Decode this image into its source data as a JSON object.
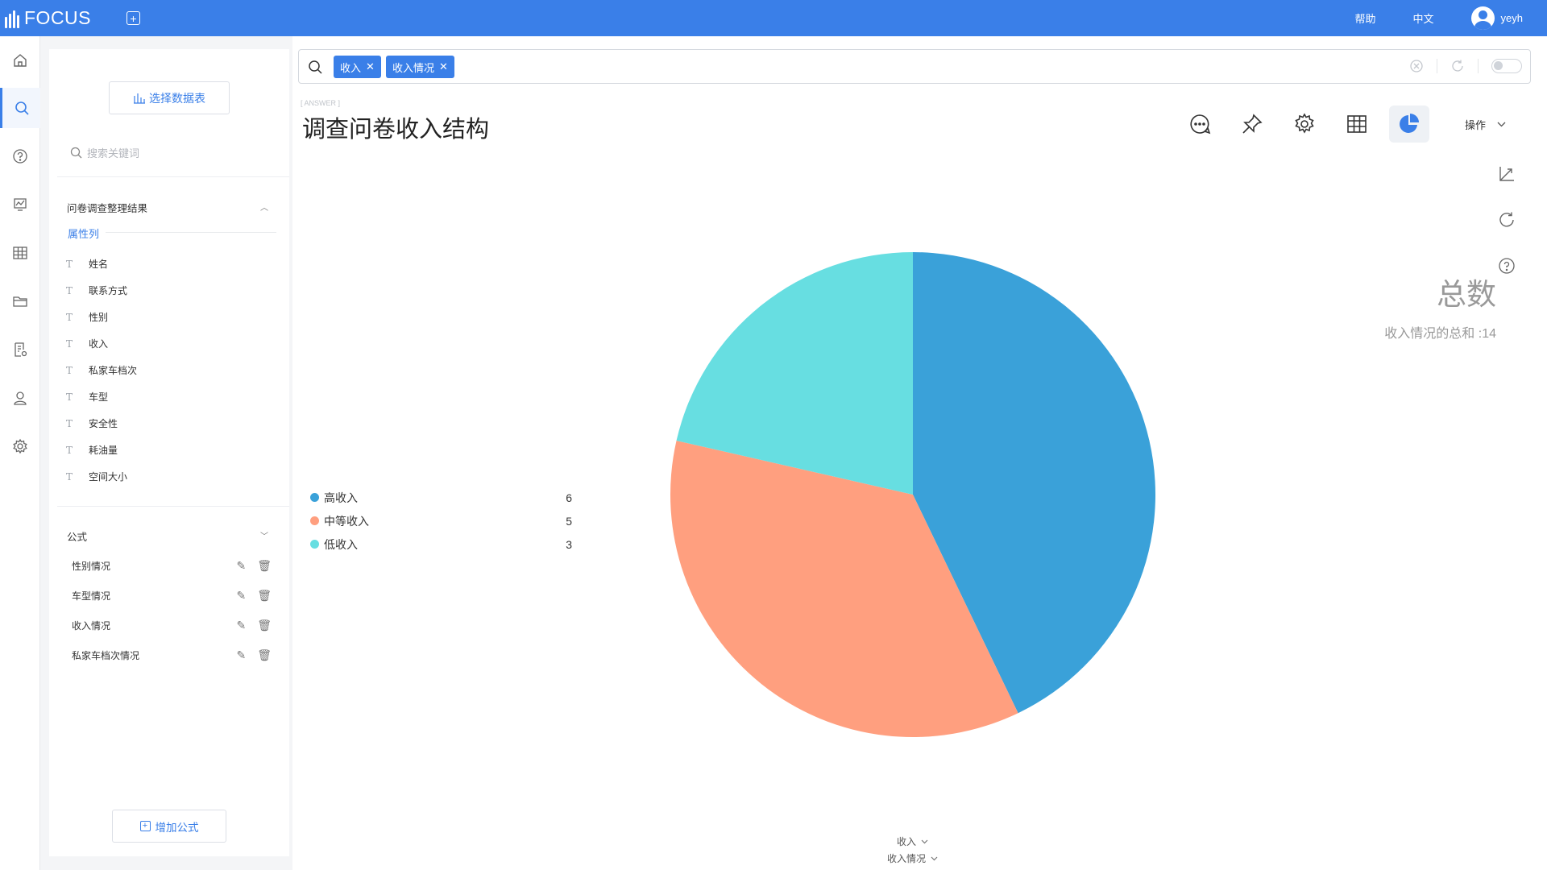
{
  "app": {
    "logo_text": "FOCUS",
    "help": "帮助",
    "lang": "中文",
    "user": "yeyh"
  },
  "sidebar": {
    "select_table": "选择数据表",
    "search_placeholder": "搜索关键词",
    "section_title": "问卷调查整理结果",
    "attr_label": "属性列",
    "fields": [
      "姓名",
      "联系方式",
      "性别",
      "收入",
      "私家车档次",
      "车型",
      "安全性",
      "耗油量",
      "空间大小"
    ],
    "formula_title": "公式",
    "formulas": [
      "性别情况",
      "车型情况",
      "收入情况",
      "私家车档次情况"
    ],
    "add_formula": "增加公式"
  },
  "search": {
    "tags": [
      "收入",
      "收入情况"
    ]
  },
  "answer": {
    "tag": "[ ANSWER ]",
    "title": "调查问卷收入结构",
    "ops_label": "操作",
    "total_title": "总数",
    "total_sub": "收入情况的总和 :14",
    "x_axis_select": "收入",
    "y_axis_select": "收入情况"
  },
  "colors": {
    "accent": "#3a7fe8",
    "high": "#3aa1d9",
    "mid": "#ff9f7f",
    "low": "#67dee1"
  },
  "chart_data": {
    "type": "pie",
    "categories": [
      "高收入",
      "中等收入",
      "低收入"
    ],
    "values": [
      6,
      5,
      3
    ],
    "colors": [
      "#3aa1d9",
      "#ff9f7f",
      "#67dee1"
    ],
    "legend_position": "left"
  }
}
